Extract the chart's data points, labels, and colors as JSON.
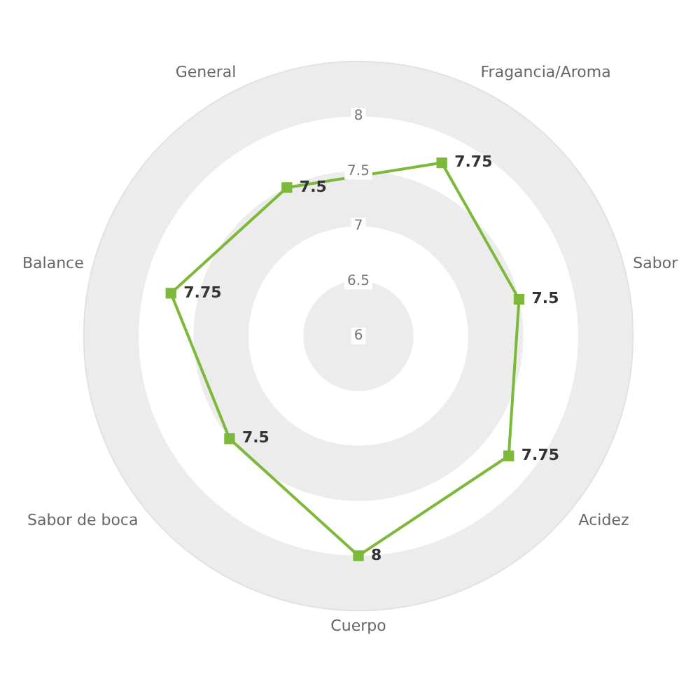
{
  "chart_data": {
    "type": "radar",
    "categories": [
      "Fragancia/Aroma",
      "Sabor",
      "Acidez",
      "Cuerpo",
      "Sabor de boca",
      "Balance",
      "General"
    ],
    "series": [
      {
        "color": "#7cb83a",
        "values": [
          7.75,
          7.5,
          7.75,
          8,
          7.5,
          7.75,
          7.5
        ]
      }
    ],
    "ylim": [
      6,
      8.5
    ],
    "yticks": [
      6,
      6.5,
      7,
      7.5,
      8
    ],
    "data_labels": true,
    "marker": "square",
    "legend": false,
    "grid": true
  }
}
